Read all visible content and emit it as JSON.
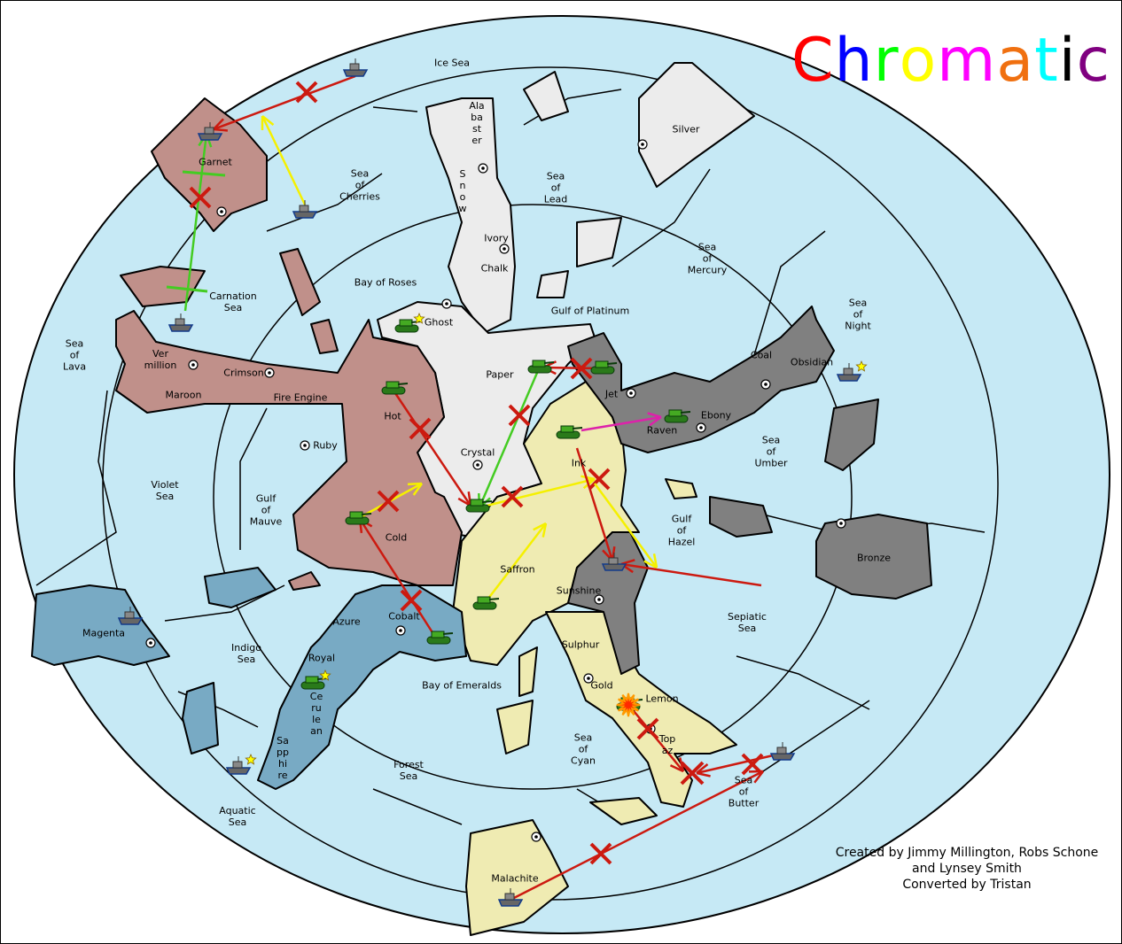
{
  "title": {
    "text": "Chromatic",
    "letters": [
      {
        "ch": "C",
        "color": "#ff0000"
      },
      {
        "ch": "h",
        "color": "#0000ff"
      },
      {
        "ch": "r",
        "color": "#00ff00"
      },
      {
        "ch": "o",
        "color": "#ffff00"
      },
      {
        "ch": "m",
        "color": "#ff00ff"
      },
      {
        "ch": "a",
        "color": "#f07010"
      },
      {
        "ch": "t",
        "color": "#00ffff"
      },
      {
        "ch": "i",
        "color": "#000000"
      },
      {
        "ch": "c",
        "color": "#800080"
      }
    ]
  },
  "credits": "Created by Jimmy Millington, Robs Schone\nand Lynsey Smith\nConverted by Tristan",
  "colors": {
    "sea": "#c6e9f5",
    "neutral_land": "#ececec",
    "red_power": "#c0908a",
    "blue_power": "#78aac4",
    "yellow_power": "#efebb2",
    "black_power": "#808080",
    "move_failed": "#cc1a10",
    "move_order": "#cc1a10",
    "support_order": "#f5f000",
    "convoy_order": "#44cc22",
    "retreat_order": "#dd22aa"
  },
  "labels": [
    "Ice Sea",
    "Ala\nba\nst\ner",
    "S\nn\no\nw",
    "Silver",
    "Sea\nof\nCherries",
    "Sea\nof\nLead",
    "Ivory",
    "Chalk",
    "Sea\nof\nMercury",
    "Bay of Roses",
    "Carnation\nSea",
    "Gulf of Platinum",
    "Ghost",
    "Sea\nof\nNight",
    "Sea\nof\nLava",
    "Ver\nmillion",
    "Crimson",
    "Paper",
    "Coal",
    "Obsidian",
    "Maroon",
    "Fire Engine",
    "Jet",
    "Ebony",
    "Hot",
    "Raven",
    "Ruby",
    "Sea\nof\nUmber",
    "Crystal",
    "Ink",
    "Violet\nSea",
    "Gulf\nof\nMauve",
    "Gulf\nof\nHazel",
    "Cold",
    "Bronze",
    "Saffron",
    "Sunshine",
    "Cobalt",
    "Sepiatic\nSea",
    "Azure",
    "Magenta",
    "Sulphur",
    "Indigo\nSea",
    "Royal",
    "Bay of Emeralds",
    "Gold",
    "Lemon",
    "Ce\nru\nle\nan",
    "Top\naz",
    "Sea\nof\nCyan",
    "Sa\npp\nhi\nre",
    "Forest\nSea",
    "Sea\nof\nButter",
    "Aquatic\nSea",
    "Malachite"
  ],
  "units": [
    {
      "type": "fleet",
      "location": "Ice Sea"
    },
    {
      "type": "fleet",
      "location": "Garnet"
    },
    {
      "type": "fleet",
      "location": "Sea of Cherries"
    },
    {
      "type": "fleet",
      "location": "Carnation Sea"
    },
    {
      "type": "army",
      "location": "Ghost",
      "star": true
    },
    {
      "type": "army",
      "location": "Hot"
    },
    {
      "type": "army",
      "location": "Paper"
    },
    {
      "type": "army",
      "location": "Jet"
    },
    {
      "type": "army",
      "location": "Raven"
    },
    {
      "type": "army",
      "location": "Ink"
    },
    {
      "type": "army",
      "location": "Crystal"
    },
    {
      "type": "army",
      "location": "Cold"
    },
    {
      "type": "army",
      "location": "Saffron"
    },
    {
      "type": "army",
      "location": "Cobalt"
    },
    {
      "type": "army",
      "location": "Royal",
      "star": true
    },
    {
      "type": "fleet",
      "location": "Sea of Night",
      "star": true
    },
    {
      "type": "fleet",
      "location": "Sunshine"
    },
    {
      "type": "fleet",
      "location": "Magenta"
    },
    {
      "type": "fleet",
      "location": "Sapphire",
      "star": true
    },
    {
      "type": "fleet",
      "location": "Sea of Butter"
    },
    {
      "type": "fleet",
      "location": "Malachite"
    },
    {
      "type": "army",
      "location": "Lemon",
      "dislodged": true
    }
  ]
}
